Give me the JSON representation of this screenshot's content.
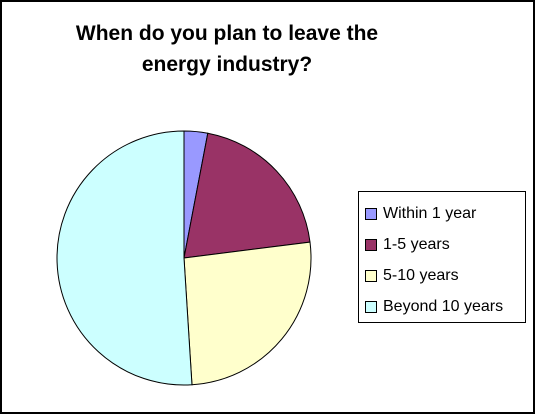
{
  "chart_data": {
    "type": "pie",
    "title": "When do you plan to leave the energy industry?",
    "categories": [
      "Within 1 year",
      "1-5 years",
      "5-10 years",
      "Beyond 10 years"
    ],
    "values": [
      3,
      20,
      26,
      51
    ],
    "colors": [
      "#9999FF",
      "#993366",
      "#FFFFCC",
      "#CCFFFF"
    ],
    "legend_position": "right"
  }
}
